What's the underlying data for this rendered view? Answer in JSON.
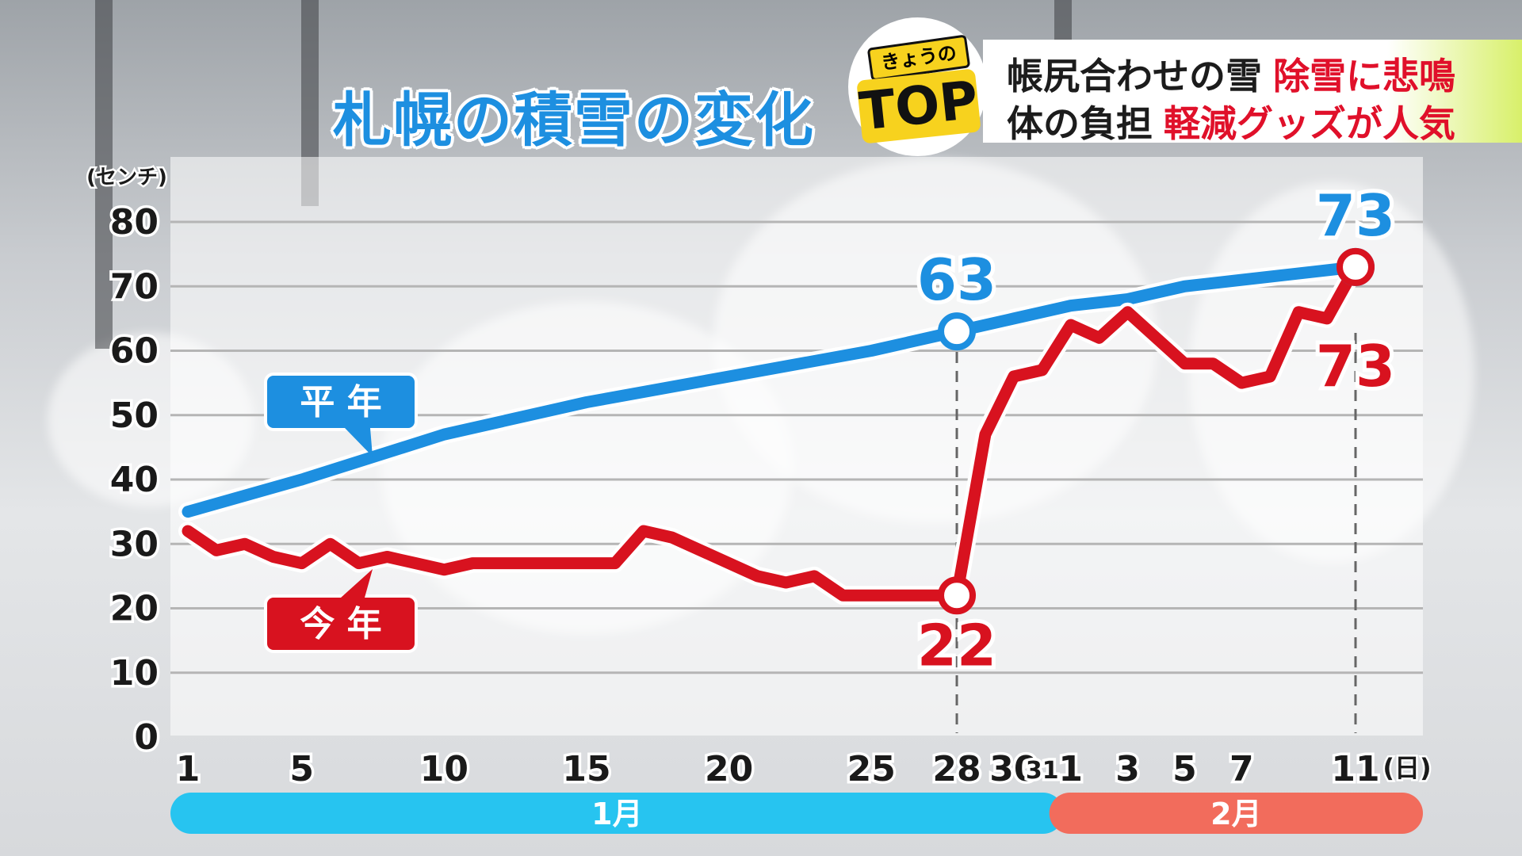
{
  "title": "札幌の積雪の変化",
  "banner": {
    "line1_dark": "帳尻合わせの雪",
    "line1_red": "除雪に悲鳴",
    "line2_dark": "体の負担",
    "line2_red": "軽減グッズが人気"
  },
  "badge": {
    "small": "きょうの",
    "big": "TOP"
  },
  "colors": {
    "heinen": "#1d8fe0",
    "kotoshi": "#d8121f",
    "month_jan": "#27c4f0",
    "month_feb": "#f26c5c"
  },
  "chart_data": {
    "type": "line",
    "title": "札幌の積雪の変化",
    "ylabel": "(センチ)",
    "xunit": "(日)",
    "ylim": [
      0,
      80
    ],
    "yticks": [
      0,
      10,
      20,
      30,
      40,
      50,
      60,
      70,
      80
    ],
    "xtick_labels": [
      {
        "label": "1",
        "day": 1
      },
      {
        "label": "5",
        "day": 5
      },
      {
        "label": "10",
        "day": 10
      },
      {
        "label": "15",
        "day": 15
      },
      {
        "label": "20",
        "day": 20
      },
      {
        "label": "25",
        "day": 25
      },
      {
        "label": "28",
        "day": 28
      },
      {
        "label": "30",
        "day": 30
      },
      {
        "label": "31",
        "day": 31
      },
      {
        "label": "1",
        "day": 32
      },
      {
        "label": "3",
        "day": 34
      },
      {
        "label": "5",
        "day": 36
      },
      {
        "label": "7",
        "day": 38
      },
      {
        "label": "11",
        "day": 42
      }
    ],
    "months": [
      {
        "label": "1月",
        "from": 1,
        "to": 31
      },
      {
        "label": "2月",
        "from": 32,
        "to": 42
      }
    ],
    "series": [
      {
        "name": "平 年",
        "x": [
          1,
          5,
          10,
          15,
          20,
          25,
          28,
          30,
          32,
          34,
          36,
          38,
          42
        ],
        "values": [
          35,
          40,
          47,
          52,
          56,
          60,
          63,
          65,
          67,
          68,
          70,
          71,
          73
        ]
      },
      {
        "name": "今 年",
        "x": [
          1,
          2,
          3,
          4,
          5,
          6,
          7,
          8,
          9,
          10,
          11,
          12,
          13,
          14,
          15,
          16,
          17,
          18,
          19,
          20,
          21,
          22,
          23,
          24,
          25,
          26,
          27,
          28,
          29,
          30,
          31,
          32,
          33,
          34,
          35,
          36,
          37,
          38,
          39,
          40,
          41,
          42
        ],
        "values": [
          32,
          29,
          30,
          28,
          27,
          30,
          27,
          28,
          27,
          26,
          27,
          27,
          27,
          27,
          27,
          27,
          32,
          31,
          29,
          27,
          25,
          24,
          25,
          22,
          22,
          22,
          22,
          22,
          47,
          56,
          57,
          64,
          62,
          66,
          62,
          58,
          58,
          55,
          56,
          66,
          65,
          73
        ]
      }
    ],
    "annotations": [
      {
        "series": "平 年",
        "day": 28,
        "value": 63,
        "text": "63"
      },
      {
        "series": "平 年",
        "day": 42,
        "value": 73,
        "text": "73"
      },
      {
        "series": "今 年",
        "day": 28,
        "value": 22,
        "text": "22"
      },
      {
        "series": "今 年",
        "day": 42,
        "value": 73,
        "text": "73"
      }
    ],
    "vlines": [
      28,
      42
    ]
  }
}
